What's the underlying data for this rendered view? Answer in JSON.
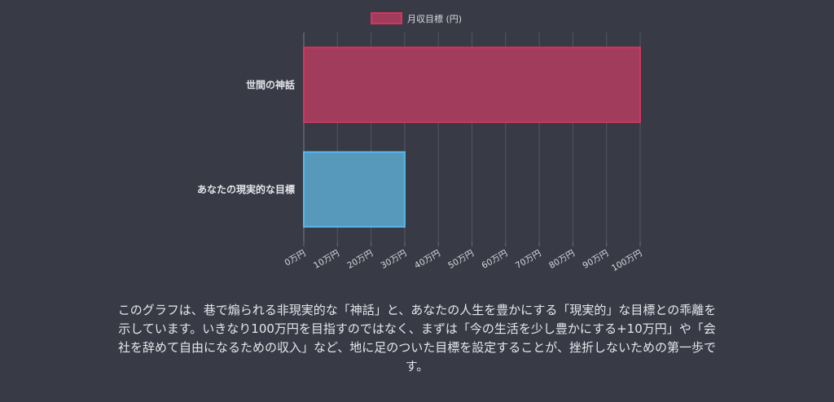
{
  "chart_data": {
    "type": "bar",
    "orientation": "horizontal",
    "categories": [
      "世間の神話",
      "あなたの現実的な目標"
    ],
    "series": [
      {
        "name": "月収目標 (円)",
        "values": [
          1000000,
          300000
        ]
      }
    ],
    "bar_colors": [
      "#a23c5c",
      "#5799bb"
    ],
    "bar_border_colors": [
      "#d2365f",
      "#58b8ea"
    ],
    "x_ticks": [
      0,
      100000,
      200000,
      300000,
      400000,
      500000,
      600000,
      700000,
      800000,
      900000,
      1000000
    ],
    "x_tick_labels": [
      "0万円",
      "10万円",
      "20万円",
      "30万円",
      "40万円",
      "50万円",
      "60万円",
      "70万円",
      "80万円",
      "90万円",
      "100万円"
    ],
    "xlim": [
      0,
      1000000
    ],
    "grid": true,
    "legend": "top-center",
    "legend_swatch_color": "#a23c5c",
    "legend_swatch_border": "#d2365f"
  },
  "caption": "このグラフは、巷で煽られる非現実的な「神話」と、あなたの人生を豊かにする「現実的」な目標との乖離を示しています。いきなり100万円を目指すのではなく、まずは「今の生活を少し豊かにする+10万円」や「会社を辞めて自由になるための収入」など、地に足のついた目標を設定することが、挫折しないための第一歩です。"
}
